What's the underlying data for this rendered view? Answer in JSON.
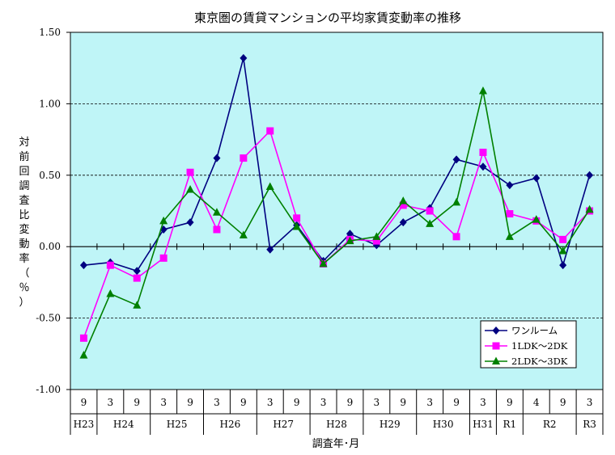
{
  "chart_data": {
    "type": "line",
    "title": "東京圏の賃貸マンションの平均家賃変動率の推移",
    "ylabel": "対前回調査比変動率（％）",
    "xlabel": "調査年･月",
    "ylim": [
      -1.0,
      1.5
    ],
    "yticks": [
      "1.50",
      "1.00",
      "0.50",
      "0.00",
      "-0.50",
      "-1.00"
    ],
    "ytick_values": [
      1.5,
      1.0,
      0.5,
      0.0,
      -0.5,
      -1.0
    ],
    "grid": true,
    "legend_position": "bottom-right",
    "months": [
      "9",
      "3",
      "9",
      "3",
      "9",
      "3",
      "9",
      "3",
      "9",
      "3",
      "9",
      "3",
      "9",
      "3",
      "9",
      "3",
      "9",
      "4",
      "9",
      "3"
    ],
    "years": [
      {
        "label": "H23",
        "start": 0,
        "end": 0
      },
      {
        "label": "H24",
        "start": 1,
        "end": 2
      },
      {
        "label": "H25",
        "start": 3,
        "end": 4
      },
      {
        "label": "H26",
        "start": 5,
        "end": 6
      },
      {
        "label": "H27",
        "start": 7,
        "end": 8
      },
      {
        "label": "H28",
        "start": 9,
        "end": 10
      },
      {
        "label": "H29",
        "start": 11,
        "end": 12
      },
      {
        "label": "H30",
        "start": 13,
        "end": 14
      },
      {
        "label": "H31",
        "start": 15,
        "end": 15
      },
      {
        "label": "R1",
        "start": 16,
        "end": 16
      },
      {
        "label": "R2",
        "start": 17,
        "end": 18
      },
      {
        "label": "R3",
        "start": 19,
        "end": 19
      }
    ],
    "series": [
      {
        "name": "ワンルーム",
        "color": "#000080",
        "marker": "diamond",
        "values": [
          -0.13,
          -0.11,
          -0.17,
          0.12,
          0.17,
          0.62,
          1.32,
          -0.02,
          0.15,
          -0.1,
          0.09,
          0.01,
          0.17,
          0.27,
          0.61,
          0.56,
          0.43,
          0.48,
          -0.13,
          0.5
        ]
      },
      {
        "name": "1LDK～2DK",
        "color": "#ff00ff",
        "marker": "square",
        "values": [
          -0.64,
          -0.13,
          -0.22,
          -0.08,
          0.52,
          0.12,
          0.62,
          0.81,
          0.2,
          -0.12,
          0.05,
          0.04,
          0.29,
          0.25,
          0.07,
          0.66,
          0.23,
          0.18,
          0.05,
          0.25
        ]
      },
      {
        "name": "2LDK～3DK",
        "color": "#008000",
        "marker": "triangle",
        "values": [
          -0.76,
          -0.33,
          -0.41,
          0.18,
          0.4,
          0.24,
          0.08,
          0.42,
          0.14,
          -0.12,
          0.04,
          0.07,
          0.32,
          0.16,
          0.31,
          1.09,
          0.07,
          0.19,
          -0.03,
          0.26
        ]
      }
    ]
  }
}
